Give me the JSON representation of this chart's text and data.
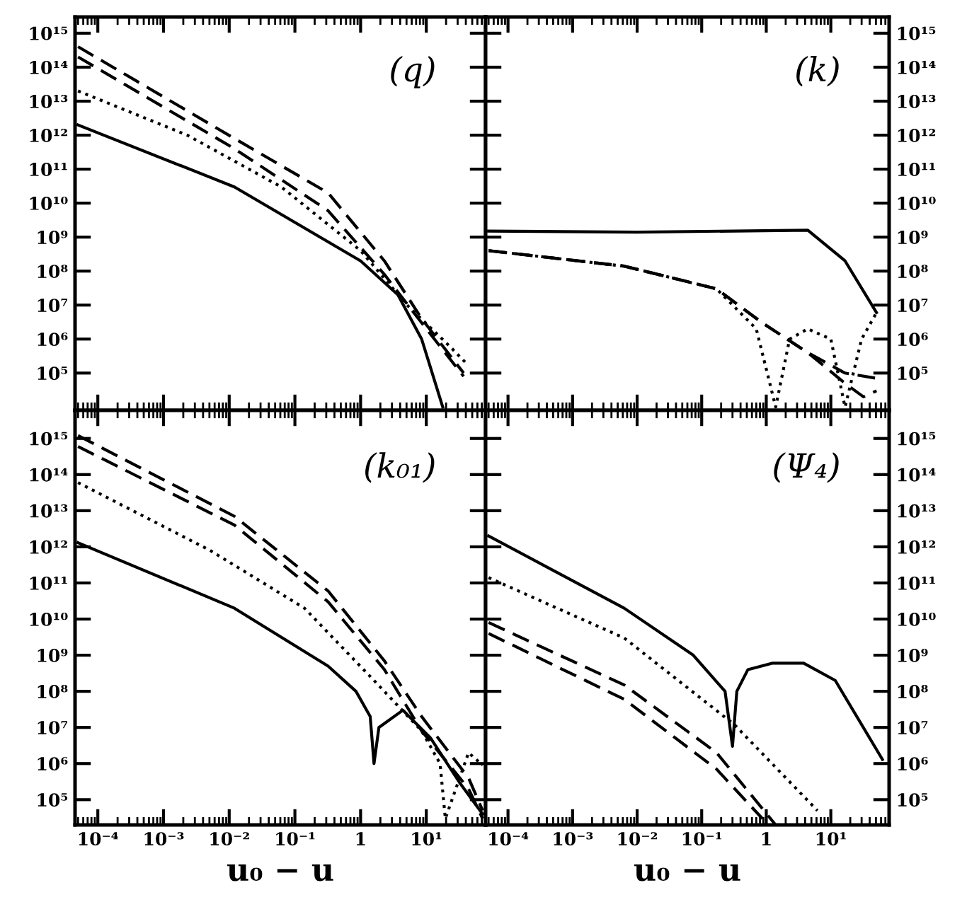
{
  "chart_data": [
    {
      "type": "line",
      "title": "(q)",
      "log": "xy",
      "xlim": [
        4.5e-05,
        80
      ],
      "ylim": [
        8000,
        3000000000000000.0
      ],
      "tick_labels": "y",
      "grid": false,
      "yticks": [
        {
          "value": 1000000000000000.0,
          "label": "10¹⁵"
        },
        {
          "value": 100000000000000.0,
          "label": "10¹⁴"
        },
        {
          "value": 10000000000000.0,
          "label": "10¹³"
        },
        {
          "value": 1000000000000.0,
          "label": "10¹²"
        },
        {
          "value": 100000000000.0,
          "label": "10¹¹"
        },
        {
          "value": 10000000000.0,
          "label": "10¹⁰"
        },
        {
          "value": 1000000000.0,
          "label": "10⁹"
        },
        {
          "value": 100000000.0,
          "label": "10⁸"
        },
        {
          "value": 10000000.0,
          "label": "10⁷"
        },
        {
          "value": 1000000.0,
          "label": "10⁶"
        },
        {
          "value": 100000.0,
          "label": "10⁵"
        }
      ],
      "xticks": [
        {
          "value": 0.0001,
          "label": null
        },
        {
          "value": 0.001,
          "label": null
        },
        {
          "value": 0.01,
          "label": null
        },
        {
          "value": 0.1,
          "label": null
        },
        {
          "value": 1,
          "label": null
        },
        {
          "value": 10,
          "label": null
        }
      ],
      "series": [
        {
          "color": "#000000",
          "line_style": "solid",
          "x": [
            5e-05,
            0.012,
            1,
            3.7,
            8.5,
            17.8
          ],
          "values": [
            2000000000000.0,
            30000000000.0,
            200000000.0,
            20000000.0,
            1000000.0,
            10000.0
          ]
        },
        {
          "color": "#000000",
          "line_style": "dotted",
          "x": [
            5e-05,
            0.0023,
            0.062,
            1,
            5.1,
            23,
            40
          ],
          "values": [
            20000000000000.0,
            1000000000000.0,
            30000000000.0,
            400000000.0,
            10000000.0,
            600000.0,
            200000.0
          ]
        },
        {
          "color": "#000000",
          "line_style": "dashed",
          "x": [
            5e-05,
            0.012,
            0.32,
            2.3,
            8.5,
            37
          ],
          "values": [
            200000000000000.0,
            400000000000.0,
            6000000000.0,
            80000000.0,
            3000000.0,
            80000.0
          ]
        },
        {
          "color": "#000000",
          "line_style": "dashed",
          "x": [
            5e-05,
            0.012,
            0.32,
            2.3,
            8.5,
            37
          ],
          "values": [
            400000000000000.0,
            800000000000.0,
            20000000000.0,
            200000000.0,
            4000000.0,
            100000.0
          ]
        }
      ]
    },
    {
      "type": "line",
      "title": "(k)",
      "log": "xy",
      "xlim": [
        4.5e-05,
        80
      ],
      "ylim": [
        8000,
        3000000000000000.0
      ],
      "tick_labels": "y",
      "grid": false,
      "yticks": [
        {
          "value": 1000000000000000.0,
          "label": "10¹⁵"
        },
        {
          "value": 100000000000000.0,
          "label": "10¹⁴"
        },
        {
          "value": 10000000000000.0,
          "label": "10¹³"
        },
        {
          "value": 1000000000000.0,
          "label": "10¹²"
        },
        {
          "value": 100000000000.0,
          "label": "10¹¹"
        },
        {
          "value": 10000000000.0,
          "label": "10¹⁰"
        },
        {
          "value": 1000000000.0,
          "label": "10⁹"
        },
        {
          "value": 100000000.0,
          "label": "10⁸"
        },
        {
          "value": 10000000.0,
          "label": "10⁷"
        },
        {
          "value": 1000000.0,
          "label": "10⁶"
        },
        {
          "value": 100000.0,
          "label": "10⁵"
        }
      ],
      "xticks": [
        {
          "value": 0.0001,
          "label": null
        },
        {
          "value": 0.001,
          "label": null
        },
        {
          "value": 0.01,
          "label": null
        },
        {
          "value": 0.1,
          "label": null
        },
        {
          "value": 1,
          "label": null
        },
        {
          "value": 10,
          "label": null
        }
      ],
      "series": [
        {
          "color": "#000000",
          "line_style": "solid",
          "x": [
            5e-05,
            0.01,
            4.4,
            16.6,
            51
          ],
          "values": [
            1500000000.0,
            1400000000.0,
            1600000000.0,
            200000000.0,
            6000000.0
          ]
        },
        {
          "color": "#000000",
          "line_style": "dotted",
          "x": [
            5e-05,
            0.0063,
            0.17,
            0.7,
            1.4,
            2.3,
            4.4,
            10,
            16.6,
            30,
            51
          ],
          "values": [
            400000000.0,
            140000000.0,
            30000000.0,
            2000000.0,
            10000.0,
            1000000.0,
            2000000.0,
            1000000.0,
            10000.0,
            1000000.0,
            6000000.0
          ]
        },
        {
          "color": "#000000",
          "line_style": "dashed",
          "x": [
            5e-05,
            0.0063,
            0.17,
            0.87,
            4.4,
            16.6,
            32,
            51
          ],
          "values": [
            400000000.0,
            140000000.0,
            30000000.0,
            3000000.0,
            400000.0,
            50000.0,
            20000.0,
            30000.0
          ]
        },
        {
          "color": "#000000",
          "line_style": "dashed",
          "x": [
            5e-05,
            0.0063,
            0.17,
            0.87,
            4.4,
            16.6,
            51
          ],
          "values": [
            400000000.0,
            140000000.0,
            30000000.0,
            3000000.0,
            400000.0,
            100000.0,
            70000.0
          ]
        }
      ]
    },
    {
      "type": "line",
      "title": "(k₀₁)",
      "log": "xy",
      "xlabel": "u₀ − u",
      "xlim": [
        4.5e-05,
        80
      ],
      "ylim": [
        20000.0,
        6000000000000000.0
      ],
      "grid": false,
      "yticks": [
        {
          "value": 1000000000000000.0,
          "label": "10¹⁵"
        },
        {
          "value": 100000000000000.0,
          "label": "10¹⁴"
        },
        {
          "value": 10000000000000.0,
          "label": "10¹³"
        },
        {
          "value": 1000000000000.0,
          "label": "10¹²"
        },
        {
          "value": 100000000000.0,
          "label": "10¹¹"
        },
        {
          "value": 10000000000.0,
          "label": "10¹⁰"
        },
        {
          "value": 1000000000.0,
          "label": "10⁹"
        },
        {
          "value": 100000000.0,
          "label": "10⁸"
        },
        {
          "value": 10000000.0,
          "label": "10⁷"
        },
        {
          "value": 1000000.0,
          "label": "10⁶"
        },
        {
          "value": 100000.0,
          "label": "10⁵"
        }
      ],
      "xticks": [
        {
          "value": 0.0001,
          "label": "10⁻⁴"
        },
        {
          "value": 0.001,
          "label": "10⁻³"
        },
        {
          "value": 0.01,
          "label": "10⁻²"
        },
        {
          "value": 0.1,
          "label": "10⁻¹"
        },
        1,
        {
          "value": 10,
          "label": "10¹"
        }
      ],
      "series": [
        {
          "color": "#000000",
          "line_style": "solid",
          "x": [
            5e-05,
            0.012,
            0.32,
            0.85,
            1.4,
            1.6,
            1.9,
            4.4,
            11.7,
            32,
            72
          ],
          "values": [
            1300000000000.0,
            20000000000.0,
            500000000.0,
            100000000.0,
            20000000.0,
            1000000.0,
            10000000.0,
            30000000.0,
            5000000.0,
            300000.0,
            40000.0
          ]
        },
        {
          "color": "#000000",
          "line_style": "dotted",
          "x": [
            5e-05,
            0.0051,
            0.14,
            1.6,
            8.5,
            16.2,
            19.5,
            44,
            72
          ],
          "values": [
            60000000000000.0,
            800000000000.0,
            20000000000.0,
            200000000.0,
            8000000.0,
            1000000.0,
            30000.0,
            2000000.0,
            900000.0
          ]
        },
        {
          "color": "#000000",
          "line_style": "dashed",
          "x": [
            5e-05,
            0.012,
            0.32,
            2.3,
            8.5,
            44,
            72
          ],
          "values": [
            600000000000000.0,
            4000000000000.0,
            30000000000.0,
            400000000.0,
            8000000.0,
            200000.0,
            30000.0
          ]
        },
        {
          "color": "#000000",
          "line_style": "dashed",
          "x": [
            5e-05,
            0.012,
            0.32,
            2.3,
            8.5,
            44,
            72
          ],
          "values": [
            1200000000000000.0,
            7000000000000.0,
            60000000000.0,
            700000000.0,
            20000000.0,
            400000.0,
            50000.0
          ]
        }
      ]
    },
    {
      "type": "line",
      "title": "(Ψ₄)",
      "log": "xy",
      "xlabel": "u₀ − u",
      "xlim": [
        4.5e-05,
        80
      ],
      "ylim": [
        20000.0,
        6000000000000000.0
      ],
      "grid": false,
      "yticks": [
        {
          "value": 1000000000000000.0,
          "label": "10¹⁵"
        },
        {
          "value": 100000000000000.0,
          "label": "10¹⁴"
        },
        {
          "value": 10000000000000.0,
          "label": "10¹³"
        },
        {
          "value": 1000000000000.0,
          "label": "10¹²"
        },
        {
          "value": 100000000000.0,
          "label": "10¹¹"
        },
        {
          "value": 10000000000.0,
          "label": "10¹⁰"
        },
        {
          "value": 1000000000.0,
          "label": "10⁹"
        },
        {
          "value": 100000000.0,
          "label": "10⁸"
        },
        {
          "value": 10000000.0,
          "label": "10⁷"
        },
        {
          "value": 1000000.0,
          "label": "10⁶"
        },
        {
          "value": 100000.0,
          "label": "10⁵"
        }
      ],
      "xticks": [
        {
          "value": 0.0001,
          "label": "10⁻⁴"
        },
        {
          "value": 0.001,
          "label": "10⁻³"
        },
        {
          "value": 0.01,
          "label": "10⁻²"
        },
        {
          "value": 0.1,
          "label": "10⁻¹"
        },
        1,
        {
          "value": 10,
          "label": "10¹"
        }
      ],
      "series": [
        {
          "color": "#000000",
          "line_style": "solid",
          "x": [
            5e-05,
            0.0063,
            0.074,
            0.23,
            0.3,
            0.35,
            0.52,
            1.23,
            3.8,
            11.7,
            63
          ],
          "values": [
            2000000000000.0,
            20000000000.0,
            1000000000.0,
            100000000.0,
            3000000.0,
            100000000.0,
            400000000.0,
            600000000.0,
            600000000.0,
            200000000.0,
            1300000.0
          ]
        },
        {
          "color": "#000000",
          "line_style": "dotted",
          "x": [
            5e-05,
            0.0063,
            0.32,
            6.2
          ],
          "values": [
            140000000000.0,
            3000000000.0,
            12000000.0,
            50000.0
          ]
        },
        {
          "color": "#000000",
          "line_style": "dashed",
          "x": [
            5e-05,
            0.0063,
            0.17,
            1.4
          ],
          "values": [
            8000000000.0,
            150000000.0,
            2000000.0,
            20000.0
          ]
        },
        {
          "color": "#000000",
          "line_style": "dashed",
          "x": [
            5e-05,
            0.0063,
            0.17,
            0.87
          ],
          "values": [
            4000000000.0,
            60000000.0,
            700000.0,
            30000.0
          ]
        }
      ]
    }
  ]
}
